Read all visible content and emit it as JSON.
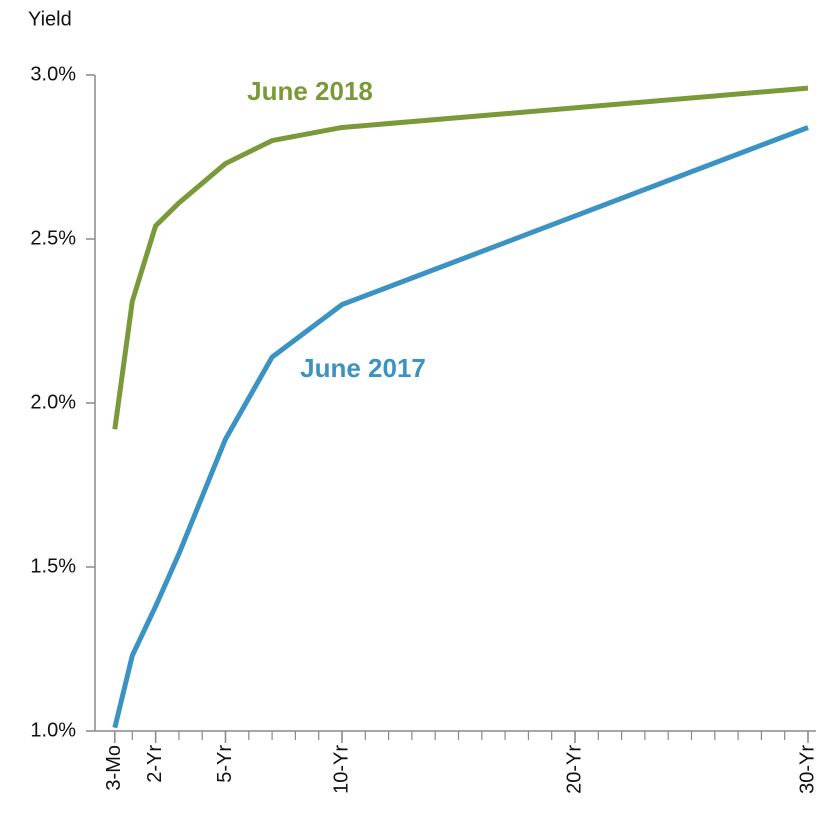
{
  "chart_data": {
    "type": "line",
    "y_label": "Yield",
    "x": [
      0.25,
      1,
      2,
      3,
      5,
      7,
      10,
      30
    ],
    "series": [
      {
        "name": "June 2018",
        "color": "#7a9a3a",
        "values": [
          1.92,
          2.31,
          2.54,
          2.61,
          2.73,
          2.8,
          2.84,
          2.96
        ]
      },
      {
        "name": "June 2017",
        "color": "#3a93c3",
        "values": [
          1.01,
          1.23,
          1.38,
          1.54,
          1.89,
          2.14,
          2.3,
          2.84
        ]
      }
    ],
    "xlim": [
      0,
      30
    ],
    "xticks": [
      {
        "value": 0.25,
        "label": "3-Mo"
      },
      {
        "value": 2,
        "label": "2-Yr"
      },
      {
        "value": 5,
        "label": "5-Yr"
      },
      {
        "value": 10,
        "label": "10-Yr"
      },
      {
        "value": 20,
        "label": "20-Yr"
      },
      {
        "value": 30,
        "label": "30-Yr"
      }
    ],
    "xminorticks": [
      1,
      2,
      3,
      4,
      5,
      6,
      7,
      8,
      9,
      10,
      11,
      12,
      13,
      14,
      15,
      16,
      17,
      18,
      19,
      20,
      21,
      22,
      23,
      24,
      25,
      26,
      27,
      28,
      29,
      30
    ],
    "ylim": [
      1.0,
      3.0
    ],
    "yticks": [
      {
        "value": 1.0,
        "label": "1.0%"
      },
      {
        "value": 1.5,
        "label": "1.5%"
      },
      {
        "value": 2.0,
        "label": "2.0%"
      },
      {
        "value": 2.5,
        "label": "2.5%"
      },
      {
        "value": 3.0,
        "label": "3.0%"
      }
    ]
  }
}
